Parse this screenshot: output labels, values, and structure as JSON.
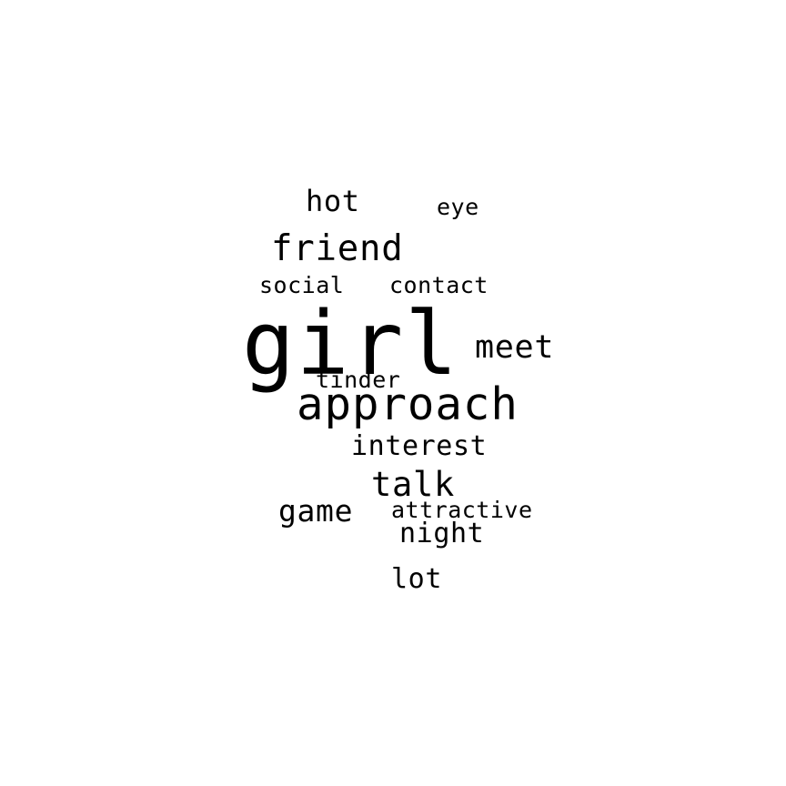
{
  "word_cloud": {
    "text_color": "#000000",
    "background_color": "#ffffff",
    "words": {
      "girl": "girl",
      "approach": "approach",
      "friend": "friend",
      "meet": "meet",
      "talk": "talk",
      "game": "game",
      "interest": "interest",
      "hot": "hot",
      "night": "night",
      "lot": "lot",
      "contact": "contact",
      "social": "social",
      "tinder": "tinder",
      "attractive": "attractive",
      "eye": "eye"
    }
  }
}
